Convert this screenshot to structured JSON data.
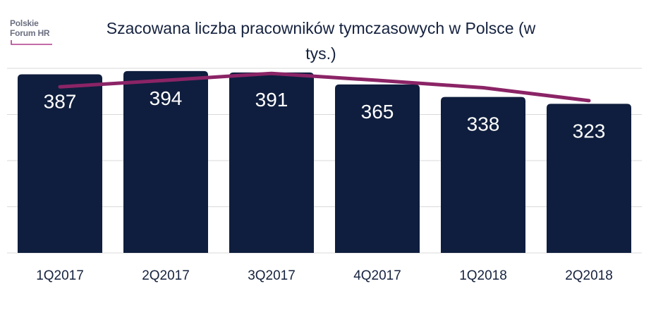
{
  "logo": {
    "line1": "Polskie",
    "line2": "Forum HR"
  },
  "colors": {
    "bar": "#0f1e3e",
    "line": "#8b2466",
    "grid": "#d9d9d9",
    "text": "#15223f"
  },
  "chart_data": {
    "type": "bar",
    "title": "Szacowana liczba pracowników tymczasowych w Polsce (w tys.)",
    "categories": [
      "1Q2017",
      "2Q2017",
      "3Q2017",
      "4Q2017",
      "1Q2018",
      "2Q2018"
    ],
    "series": [
      {
        "values": [
          387,
          394,
          391,
          365,
          338,
          323
        ]
      }
    ],
    "data_labels": [
      "387",
      "394",
      "391",
      "365",
      "338",
      "323"
    ],
    "line_series": {
      "values": [
        360,
        374,
        389,
        374,
        358,
        330
      ]
    },
    "ylim": [
      0,
      400
    ],
    "grid": true,
    "legend": "none"
  }
}
